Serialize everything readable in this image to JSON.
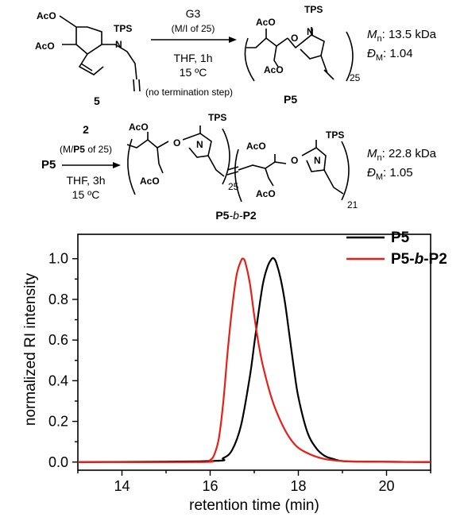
{
  "scheme": {
    "row1": {
      "monomer_ac_top": "AcO",
      "monomer_ac_left": "AcO",
      "monomer_tps": "TPS",
      "monomer_n": "N",
      "monomer_label": "5",
      "catalyst": "G3",
      "ratio_open": "(M/I of 25)",
      "conditions_solvent": "THF, 1h",
      "conditions_temp": "15 ºC",
      "note": "(no termination step)",
      "polymer_ac_1": "AcO",
      "polymer_ac_2": "AcO",
      "polymer_tps": "TPS",
      "polymer_n": "N",
      "polymer_o": "O",
      "repeat": "25",
      "polymer_label": "P5",
      "mn_label": "M",
      "mn_sub": "n",
      "mn_value": ": 13.5 kDa",
      "d_label": "Đ",
      "d_sub": "M",
      "d_value": ": 1.04"
    },
    "row2": {
      "reactant": "P5",
      "monomer": "2",
      "ratio_open": "(M/",
      "ratio_bold": "P5",
      "ratio_close": " of 25)",
      "conditions_solvent": "THF, 3h",
      "conditions_temp": "15 ºC",
      "block1_ac_1": "AcO",
      "block1_ac_2": "AcO",
      "block1_tps": "TPS",
      "block1_n": "N",
      "block1_o": "O",
      "block1_repeat": "25",
      "block2_ac_1": "AcO",
      "block2_ac_2": "AcO",
      "block2_tps": "TPS",
      "block2_n": "N",
      "block2_o": "O",
      "block2_repeat": "21",
      "product_a": "P5",
      "product_b": "-b-",
      "product_c": "P2",
      "mn_label": "M",
      "mn_sub": "n",
      "mn_value": ": 22.8 kDa",
      "d_label": "Đ",
      "d_sub": "M",
      "d_value": ": 1.05"
    }
  },
  "chart_data": {
    "type": "line",
    "xlabel": "retention time (min)",
    "ylabel": "normalized RI intensity",
    "xlim": [
      13,
      21
    ],
    "ylim": [
      -0.04,
      1.12
    ],
    "xticks": [
      14,
      16,
      18,
      20
    ],
    "yticks": [
      0.0,
      0.2,
      0.4,
      0.6,
      0.8,
      1.0
    ],
    "xtick_labels": [
      "14",
      "16",
      "18",
      "20"
    ],
    "ytick_labels": [
      "0.0",
      "0.2",
      "0.4",
      "0.6",
      "0.8",
      "1.0"
    ],
    "grid": false,
    "legend_position": "top-right",
    "series": [
      {
        "name": "P5",
        "color": "#000000",
        "x": [
          13.0,
          16.0,
          16.3,
          16.5,
          16.7,
          16.9,
          17.0,
          17.1,
          17.2,
          17.3,
          17.4,
          17.45,
          17.5,
          17.6,
          17.7,
          17.8,
          17.9,
          18.0,
          18.2,
          18.4,
          18.6,
          18.8,
          19.0,
          19.5,
          21.0
        ],
        "y": [
          0.0,
          0.005,
          0.02,
          0.06,
          0.18,
          0.42,
          0.58,
          0.74,
          0.88,
          0.96,
          1.0,
          1.0,
          0.98,
          0.9,
          0.78,
          0.62,
          0.46,
          0.32,
          0.15,
          0.07,
          0.03,
          0.015,
          0.005,
          0.002,
          0.0
        ]
      },
      {
        "name": "P5-b-P2",
        "color": "#e32119",
        "x": [
          13.0,
          15.8,
          16.0,
          16.1,
          16.2,
          16.3,
          16.4,
          16.5,
          16.6,
          16.7,
          16.75,
          16.8,
          16.9,
          17.0,
          17.1,
          17.2,
          17.4,
          17.6,
          17.8,
          18.0,
          18.3,
          18.6,
          19.0,
          19.6,
          21.0
        ],
        "y": [
          0.0,
          0.0,
          0.01,
          0.04,
          0.12,
          0.3,
          0.55,
          0.76,
          0.92,
          0.99,
          1.0,
          0.98,
          0.88,
          0.72,
          0.58,
          0.47,
          0.31,
          0.2,
          0.12,
          0.07,
          0.035,
          0.015,
          0.005,
          0.002,
          0.0
        ]
      }
    ]
  }
}
